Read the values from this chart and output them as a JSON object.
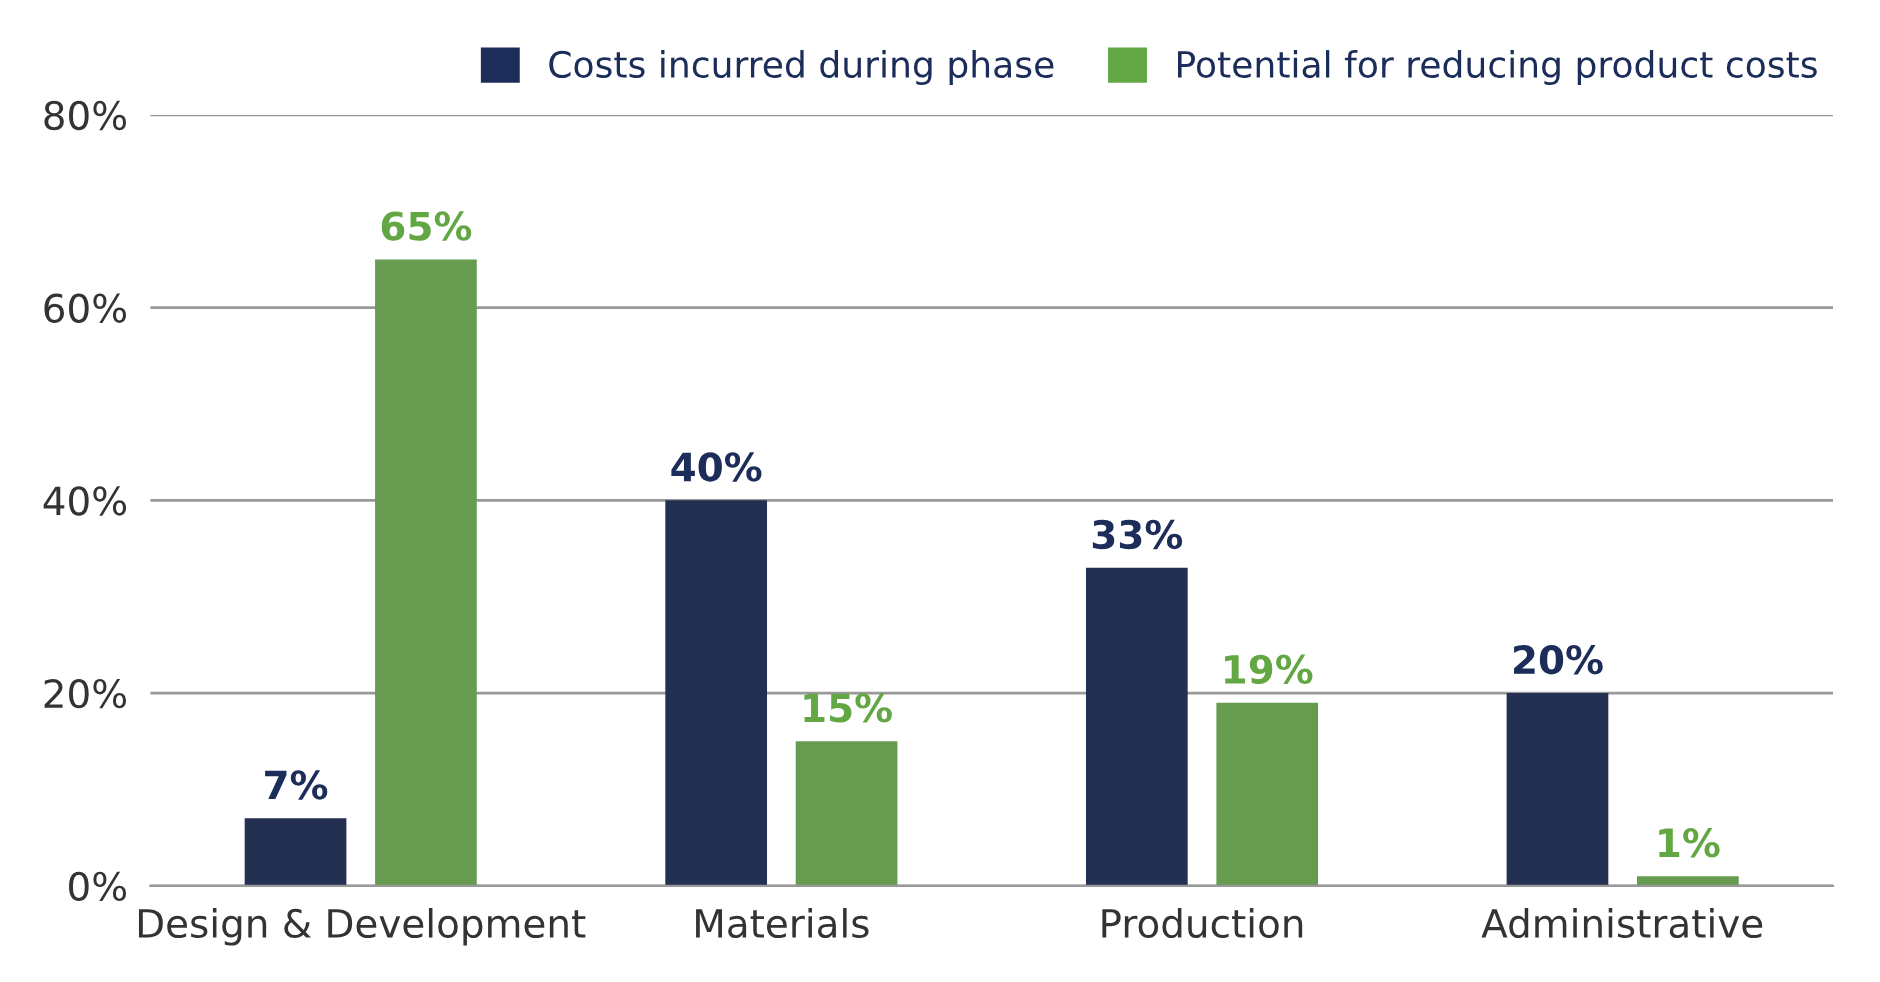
{
  "chart_data": {
    "type": "bar",
    "categories": [
      "Design & Development",
      "Materials",
      "Production",
      "Administrative"
    ],
    "series": [
      {
        "name": "Costs incurred during phase",
        "color": "#1c2d5a",
        "values": [
          7,
          40,
          33,
          20
        ],
        "value_labels": [
          "7%",
          "40%",
          "33%",
          "20%"
        ]
      },
      {
        "name": "Potential for reducing product costs",
        "color": "#62a744",
        "values": [
          65,
          15,
          19,
          1
        ],
        "value_labels": [
          "65%",
          "15%",
          "19%",
          "1%"
        ]
      }
    ],
    "ylim": [
      0,
      80
    ],
    "yticks": [
      {
        "value": 0,
        "label": "0%"
      },
      {
        "value": 20,
        "label": "20%"
      },
      {
        "value": 40,
        "label": "40%"
      },
      {
        "value": 60,
        "label": "60%"
      },
      {
        "value": 80,
        "label": "80%"
      }
    ],
    "grid": "y",
    "legend": "top right"
  }
}
